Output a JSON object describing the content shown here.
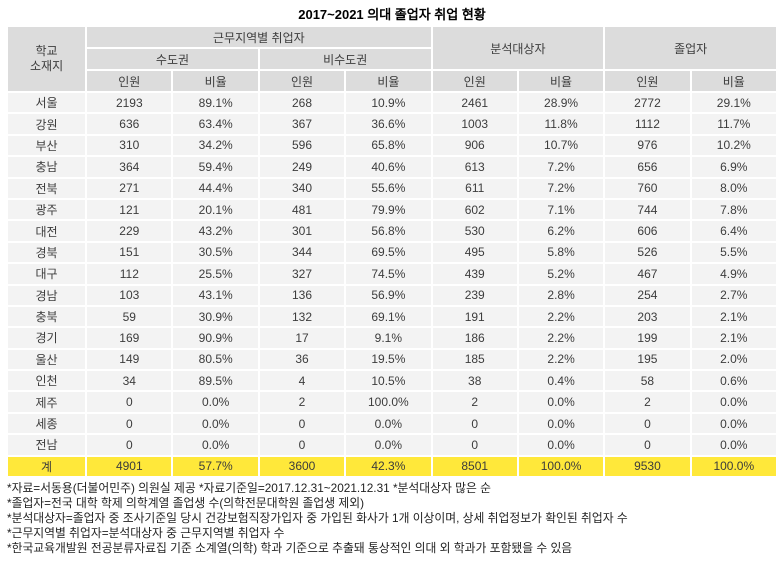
{
  "title": "2017~2021 의대 졸업자 취업 현황",
  "colors": {
    "header_bg": "#dcdcdc",
    "row_bg": "#f3f3f3",
    "total_row_bg": "#ffe83a",
    "grid_gap": "#ffffff",
    "text": "#3c3c3c"
  },
  "table": {
    "header": {
      "region_line1": "학교",
      "region_line2": "소재지",
      "employed_by_region": "근무지역별 취업자",
      "capital": "수도권",
      "non_capital": "비수도권",
      "analyzed": "분석대상자",
      "graduates": "졸업자",
      "count": "인원",
      "ratio": "비율"
    },
    "rows": [
      {
        "region": "서울",
        "cells": [
          "2193",
          "89.1%",
          "268",
          "10.9%",
          "2461",
          "28.9%",
          "2772",
          "29.1%"
        ]
      },
      {
        "region": "강원",
        "cells": [
          "636",
          "63.4%",
          "367",
          "36.6%",
          "1003",
          "11.8%",
          "1112",
          "11.7%"
        ]
      },
      {
        "region": "부산",
        "cells": [
          "310",
          "34.2%",
          "596",
          "65.8%",
          "906",
          "10.7%",
          "976",
          "10.2%"
        ]
      },
      {
        "region": "충남",
        "cells": [
          "364",
          "59.4%",
          "249",
          "40.6%",
          "613",
          "7.2%",
          "656",
          "6.9%"
        ]
      },
      {
        "region": "전북",
        "cells": [
          "271",
          "44.4%",
          "340",
          "55.6%",
          "611",
          "7.2%",
          "760",
          "8.0%"
        ]
      },
      {
        "region": "광주",
        "cells": [
          "121",
          "20.1%",
          "481",
          "79.9%",
          "602",
          "7.1%",
          "744",
          "7.8%"
        ]
      },
      {
        "region": "대전",
        "cells": [
          "229",
          "43.2%",
          "301",
          "56.8%",
          "530",
          "6.2%",
          "606",
          "6.4%"
        ]
      },
      {
        "region": "경북",
        "cells": [
          "151",
          "30.5%",
          "344",
          "69.5%",
          "495",
          "5.8%",
          "526",
          "5.5%"
        ]
      },
      {
        "region": "대구",
        "cells": [
          "112",
          "25.5%",
          "327",
          "74.5%",
          "439",
          "5.2%",
          "467",
          "4.9%"
        ]
      },
      {
        "region": "경남",
        "cells": [
          "103",
          "43.1%",
          "136",
          "56.9%",
          "239",
          "2.8%",
          "254",
          "2.7%"
        ]
      },
      {
        "region": "충북",
        "cells": [
          "59",
          "30.9%",
          "132",
          "69.1%",
          "191",
          "2.2%",
          "203",
          "2.1%"
        ]
      },
      {
        "region": "경기",
        "cells": [
          "169",
          "90.9%",
          "17",
          "9.1%",
          "186",
          "2.2%",
          "199",
          "2.1%"
        ]
      },
      {
        "region": "울산",
        "cells": [
          "149",
          "80.5%",
          "36",
          "19.5%",
          "185",
          "2.2%",
          "195",
          "2.0%"
        ]
      },
      {
        "region": "인천",
        "cells": [
          "34",
          "89.5%",
          "4",
          "10.5%",
          "38",
          "0.4%",
          "58",
          "0.6%"
        ]
      },
      {
        "region": "제주",
        "cells": [
          "0",
          "0.0%",
          "2",
          "100.0%",
          "2",
          "0.0%",
          "2",
          "0.0%"
        ]
      },
      {
        "region": "세종",
        "cells": [
          "0",
          "0.0%",
          "0",
          "0.0%",
          "0",
          "0.0%",
          "0",
          "0.0%"
        ]
      },
      {
        "region": "전남",
        "cells": [
          "0",
          "0.0%",
          "0",
          "0.0%",
          "0",
          "0.0%",
          "0",
          "0.0%"
        ]
      }
    ],
    "total": {
      "region": "계",
      "cells": [
        "4901",
        "57.7%",
        "3600",
        "42.3%",
        "8501",
        "100.0%",
        "9530",
        "100.0%"
      ]
    }
  },
  "footnotes": [
    "*자료=서동용(더불어민주) 의원실 제공   *자료기준일=2017.12.31~2021.12.31  *분석대상자 많은 순",
    "*졸업자=전국 대학 학제 의학계열 졸업생 수(의학전문대학원 졸업생 제외)",
    "*분석대상자=졸업자 중 조사기준일 당시 건강보험직장가입자 중 가입된 화사가 1개 이상이며, 상세 취업정보가 확인된 취업자 수",
    "*근무지역별 취업자=분석대상자 중 근무지역별 취업자 수",
    "*한국교육개발원 전공분류자료집 기준 소계열(의학) 학과 기준으로 추출돼 통상적인 의대 외 학과가 포함됐을 수 있음"
  ],
  "chart_data": {
    "type": "table",
    "title": "2017~2021 의대 졸업자 취업 현황",
    "columns": [
      "학교 소재지",
      "근무지역별 취업자 수도권 인원",
      "근무지역별 취업자 수도권 비율",
      "근무지역별 취업자 비수도권 인원",
      "근무지역별 취업자 비수도권 비율",
      "분석대상자 인원",
      "분석대상자 비율",
      "졸업자 인원",
      "졸업자 비율"
    ],
    "rows": [
      [
        "서울",
        2193,
        89.1,
        268,
        10.9,
        2461,
        28.9,
        2772,
        29.1
      ],
      [
        "강원",
        636,
        63.4,
        367,
        36.6,
        1003,
        11.8,
        1112,
        11.7
      ],
      [
        "부산",
        310,
        34.2,
        596,
        65.8,
        906,
        10.7,
        976,
        10.2
      ],
      [
        "충남",
        364,
        59.4,
        249,
        40.6,
        613,
        7.2,
        656,
        6.9
      ],
      [
        "전북",
        271,
        44.4,
        340,
        55.6,
        611,
        7.2,
        760,
        8.0
      ],
      [
        "광주",
        121,
        20.1,
        481,
        79.9,
        602,
        7.1,
        744,
        7.8
      ],
      [
        "대전",
        229,
        43.2,
        301,
        56.8,
        530,
        6.2,
        606,
        6.4
      ],
      [
        "경북",
        151,
        30.5,
        344,
        69.5,
        495,
        5.8,
        526,
        5.5
      ],
      [
        "대구",
        112,
        25.5,
        327,
        74.5,
        439,
        5.2,
        467,
        4.9
      ],
      [
        "경남",
        103,
        43.1,
        136,
        56.9,
        239,
        2.8,
        254,
        2.7
      ],
      [
        "충북",
        59,
        30.9,
        132,
        69.1,
        191,
        2.2,
        203,
        2.1
      ],
      [
        "경기",
        169,
        90.9,
        17,
        9.1,
        186,
        2.2,
        199,
        2.1
      ],
      [
        "울산",
        149,
        80.5,
        36,
        19.5,
        185,
        2.2,
        195,
        2.0
      ],
      [
        "인천",
        34,
        89.5,
        4,
        10.5,
        38,
        0.4,
        58,
        0.6
      ],
      [
        "제주",
        0,
        0.0,
        2,
        100.0,
        2,
        0.0,
        2,
        0.0
      ],
      [
        "세종",
        0,
        0.0,
        0,
        0.0,
        0,
        0.0,
        0,
        0.0
      ],
      [
        "전남",
        0,
        0.0,
        0,
        0.0,
        0,
        0.0,
        0,
        0.0
      ],
      [
        "계",
        4901,
        57.7,
        3600,
        42.3,
        8501,
        100.0,
        9530,
        100.0
      ]
    ],
    "ratio_unit": "%"
  }
}
